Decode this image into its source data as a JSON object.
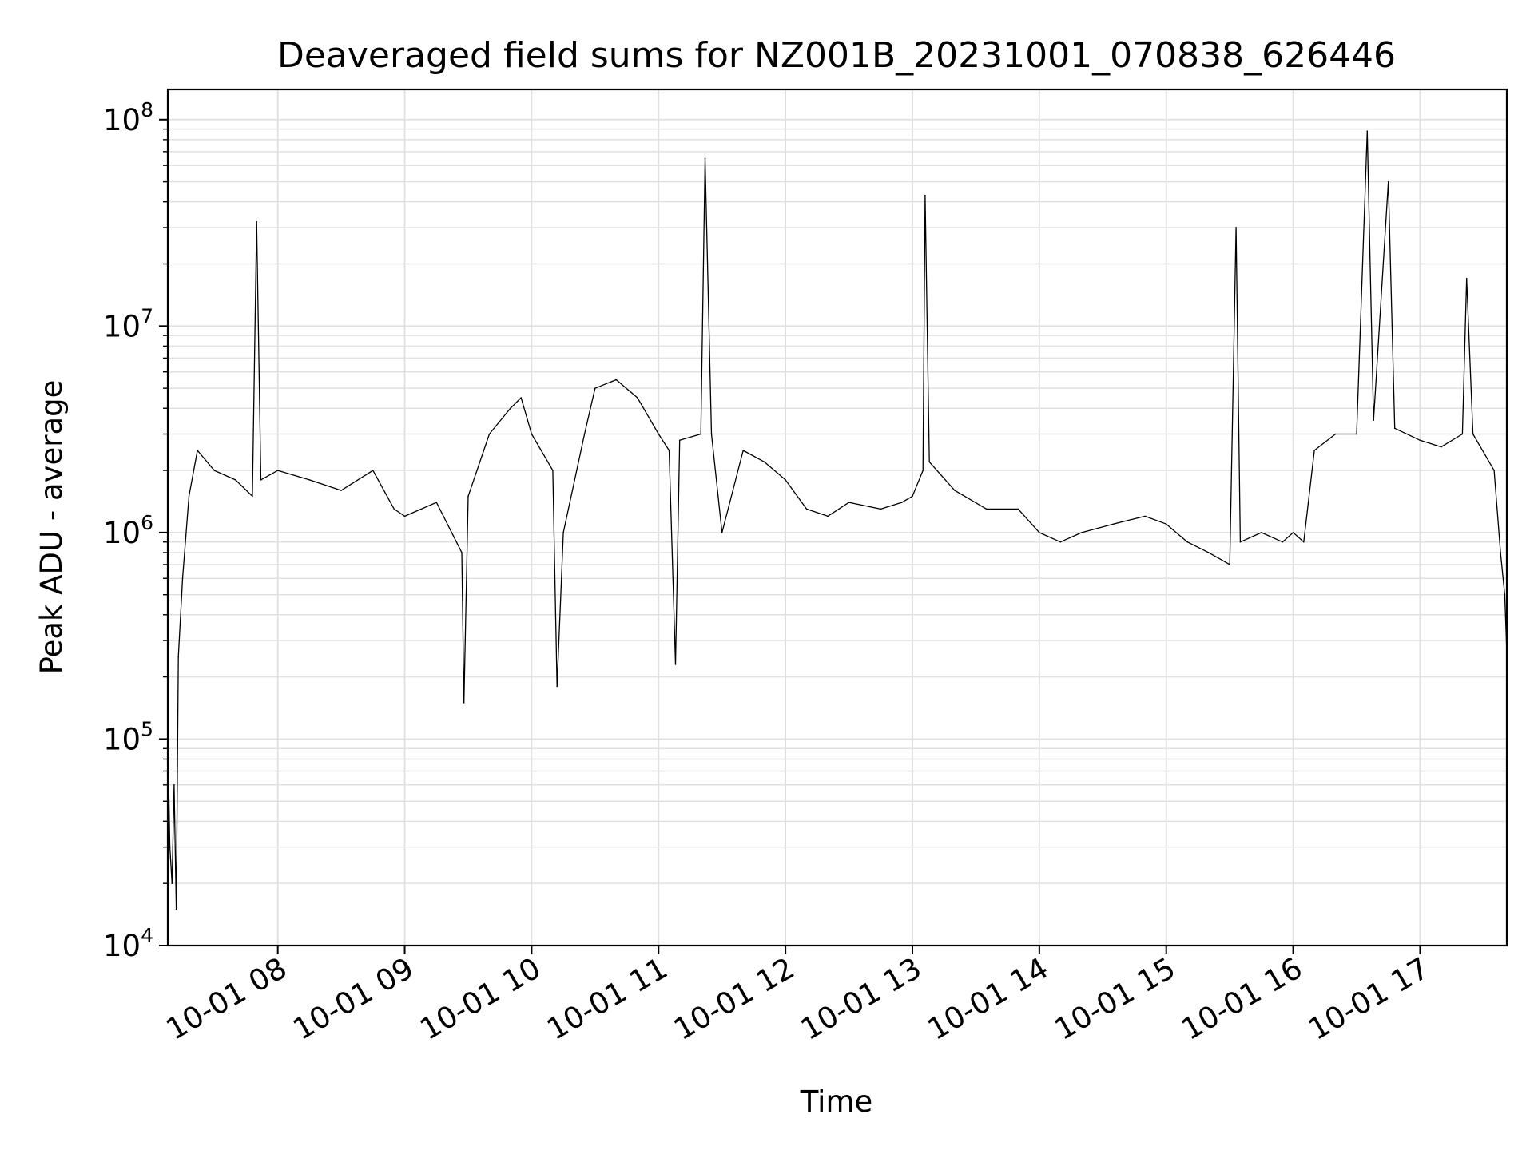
{
  "chart_data": {
    "type": "line",
    "title": "Deaveraged field sums for NZ001B_20231001_070838_626446",
    "xlabel": "Time",
    "ylabel": "Peak ADU - average",
    "y_scale": "log",
    "ylim": [
      10000,
      140000000
    ],
    "xlim": [
      "2023-10-01 07:08",
      "2023-10-01 17:41"
    ],
    "grid": true,
    "legend": "none",
    "line_color": "#000000",
    "grid_color": "#e0e0e0",
    "x_ticks": [
      {
        "t": "2023-10-01 08:00",
        "label": "10-01 08"
      },
      {
        "t": "2023-10-01 09:00",
        "label": "10-01 09"
      },
      {
        "t": "2023-10-01 10:00",
        "label": "10-01 10"
      },
      {
        "t": "2023-10-01 11:00",
        "label": "10-01 11"
      },
      {
        "t": "2023-10-01 12:00",
        "label": "10-01 12"
      },
      {
        "t": "2023-10-01 13:00",
        "label": "10-01 13"
      },
      {
        "t": "2023-10-01 14:00",
        "label": "10-01 14"
      },
      {
        "t": "2023-10-01 15:00",
        "label": "10-01 15"
      },
      {
        "t": "2023-10-01 16:00",
        "label": "10-01 16"
      },
      {
        "t": "2023-10-01 17:00",
        "label": "10-01 17"
      }
    ],
    "y_ticks": [
      {
        "value": 10000,
        "base": "10",
        "exp": "4"
      },
      {
        "value": 100000,
        "base": "10",
        "exp": "5"
      },
      {
        "value": 1000000,
        "base": "10",
        "exp": "6"
      },
      {
        "value": 10000000,
        "base": "10",
        "exp": "7"
      },
      {
        "value": 100000000,
        "base": "10",
        "exp": "8"
      }
    ],
    "series": [
      {
        "points": [
          [
            "2023-10-01 07:08",
            100000
          ],
          [
            "2023-10-01 07:09",
            30000
          ],
          [
            "2023-10-01 07:10",
            20000
          ],
          [
            "2023-10-01 07:11",
            60000
          ],
          [
            "2023-10-01 07:12",
            15000
          ],
          [
            "2023-10-01 07:13",
            250000
          ],
          [
            "2023-10-01 07:15",
            600000
          ],
          [
            "2023-10-01 07:18",
            1500000
          ],
          [
            "2023-10-01 07:22",
            2500000
          ],
          [
            "2023-10-01 07:30",
            2000000
          ],
          [
            "2023-10-01 07:40",
            1800000
          ],
          [
            "2023-10-01 07:48",
            1500000
          ],
          [
            "2023-10-01 07:50",
            32000000
          ],
          [
            "2023-10-01 07:52",
            1800000
          ],
          [
            "2023-10-01 08:00",
            2000000
          ],
          [
            "2023-10-01 08:15",
            1800000
          ],
          [
            "2023-10-01 08:30",
            1600000
          ],
          [
            "2023-10-01 08:45",
            2000000
          ],
          [
            "2023-10-01 08:55",
            1300000
          ],
          [
            "2023-10-01 09:00",
            1200000
          ],
          [
            "2023-10-01 09:15",
            1400000
          ],
          [
            "2023-10-01 09:27",
            800000
          ],
          [
            "2023-10-01 09:28",
            150000
          ],
          [
            "2023-10-01 09:30",
            1500000
          ],
          [
            "2023-10-01 09:40",
            3000000
          ],
          [
            "2023-10-01 09:50",
            4000000
          ],
          [
            "2023-10-01 09:55",
            4500000
          ],
          [
            "2023-10-01 10:00",
            3000000
          ],
          [
            "2023-10-01 10:10",
            2000000
          ],
          [
            "2023-10-01 10:12",
            180000
          ],
          [
            "2023-10-01 10:15",
            1000000
          ],
          [
            "2023-10-01 10:25",
            3000000
          ],
          [
            "2023-10-01 10:30",
            5000000
          ],
          [
            "2023-10-01 10:40",
            5500000
          ],
          [
            "2023-10-01 10:50",
            4500000
          ],
          [
            "2023-10-01 11:00",
            3000000
          ],
          [
            "2023-10-01 11:05",
            2500000
          ],
          [
            "2023-10-01 11:08",
            230000
          ],
          [
            "2023-10-01 11:10",
            2800000
          ],
          [
            "2023-10-01 11:20",
            3000000
          ],
          [
            "2023-10-01 11:22",
            65000000
          ],
          [
            "2023-10-01 11:25",
            3000000
          ],
          [
            "2023-10-01 11:30",
            1000000
          ],
          [
            "2023-10-01 11:40",
            2500000
          ],
          [
            "2023-10-01 11:50",
            2200000
          ],
          [
            "2023-10-01 12:00",
            1800000
          ],
          [
            "2023-10-01 12:10",
            1300000
          ],
          [
            "2023-10-01 12:20",
            1200000
          ],
          [
            "2023-10-01 12:30",
            1400000
          ],
          [
            "2023-10-01 12:45",
            1300000
          ],
          [
            "2023-10-01 12:55",
            1400000
          ],
          [
            "2023-10-01 13:00",
            1500000
          ],
          [
            "2023-10-01 13:05",
            2000000
          ],
          [
            "2023-10-01 13:06",
            43000000
          ],
          [
            "2023-10-01 13:08",
            2200000
          ],
          [
            "2023-10-01 13:20",
            1600000
          ],
          [
            "2023-10-01 13:35",
            1300000
          ],
          [
            "2023-10-01 13:50",
            1300000
          ],
          [
            "2023-10-01 14:00",
            1000000
          ],
          [
            "2023-10-01 14:10",
            900000
          ],
          [
            "2023-10-01 14:20",
            1000000
          ],
          [
            "2023-10-01 14:35",
            1100000
          ],
          [
            "2023-10-01 14:50",
            1200000
          ],
          [
            "2023-10-01 15:00",
            1100000
          ],
          [
            "2023-10-01 15:10",
            900000
          ],
          [
            "2023-10-01 15:20",
            800000
          ],
          [
            "2023-10-01 15:30",
            700000
          ],
          [
            "2023-10-01 15:33",
            30000000
          ],
          [
            "2023-10-01 15:35",
            900000
          ],
          [
            "2023-10-01 15:45",
            1000000
          ],
          [
            "2023-10-01 15:55",
            900000
          ],
          [
            "2023-10-01 16:00",
            1000000
          ],
          [
            "2023-10-01 16:05",
            900000
          ],
          [
            "2023-10-01 16:10",
            2500000
          ],
          [
            "2023-10-01 16:20",
            3000000
          ],
          [
            "2023-10-01 16:30",
            3000000
          ],
          [
            "2023-10-01 16:35",
            88000000
          ],
          [
            "2023-10-01 16:38",
            3500000
          ],
          [
            "2023-10-01 16:45",
            50000000
          ],
          [
            "2023-10-01 16:48",
            3200000
          ],
          [
            "2023-10-01 17:00",
            2800000
          ],
          [
            "2023-10-01 17:10",
            2600000
          ],
          [
            "2023-10-01 17:20",
            3000000
          ],
          [
            "2023-10-01 17:22",
            17000000
          ],
          [
            "2023-10-01 17:25",
            3000000
          ],
          [
            "2023-10-01 17:35",
            2000000
          ],
          [
            "2023-10-01 17:38",
            800000
          ],
          [
            "2023-10-01 17:40",
            500000
          ],
          [
            "2023-10-01 17:41",
            260000
          ]
        ]
      }
    ]
  }
}
